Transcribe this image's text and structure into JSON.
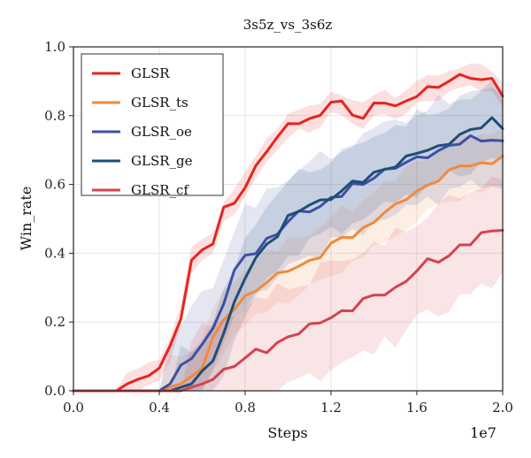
{
  "chart_data": {
    "type": "line",
    "title": "3s5z_vs_3s6z",
    "xlabel": "Steps",
    "ylabel": "Win_rate",
    "x_scale_label": "1e7",
    "xlim": [
      0.0,
      2.0
    ],
    "ylim": [
      0.0,
      1.0
    ],
    "x_ticks": [
      "0.0",
      "0.4",
      "0.8",
      "1.2",
      "1.6",
      "2.0"
    ],
    "y_ticks": [
      "0.0",
      "0.2",
      "0.4",
      "0.6",
      "0.8",
      "1.0"
    ],
    "grid": true,
    "legend_position": "top-left",
    "x": [
      0.0,
      0.1,
      0.2,
      0.25,
      0.3,
      0.35,
      0.4,
      0.45,
      0.5,
      0.55,
      0.6,
      0.65,
      0.7,
      0.75,
      0.8,
      0.85,
      0.9,
      0.95,
      1.0,
      1.05,
      1.1,
      1.15,
      1.2,
      1.25,
      1.3,
      1.35,
      1.4,
      1.45,
      1.5,
      1.55,
      1.6,
      1.65,
      1.7,
      1.75,
      1.8,
      1.85,
      1.9,
      1.95,
      2.0
    ],
    "series": [
      {
        "name": "GLSR",
        "color": "#e8231f",
        "values": [
          0.0,
          0.0,
          0.0,
          0.02,
          0.03,
          0.05,
          0.06,
          0.12,
          0.22,
          0.38,
          0.41,
          0.43,
          0.52,
          0.55,
          0.6,
          0.65,
          0.7,
          0.73,
          0.77,
          0.79,
          0.79,
          0.8,
          0.84,
          0.83,
          0.81,
          0.8,
          0.83,
          0.84,
          0.82,
          0.84,
          0.87,
          0.88,
          0.88,
          0.9,
          0.91,
          0.92,
          0.91,
          0.9,
          0.86
        ],
        "band": 0.04
      },
      {
        "name": "GLSR_ts",
        "color": "#f08a3c",
        "values": [
          0.0,
          0.0,
          0.0,
          0.0,
          0.0,
          0.0,
          0.0,
          0.01,
          0.02,
          0.04,
          0.08,
          0.15,
          0.2,
          0.24,
          0.27,
          0.3,
          0.32,
          0.33,
          0.35,
          0.36,
          0.38,
          0.4,
          0.42,
          0.44,
          0.45,
          0.47,
          0.5,
          0.52,
          0.53,
          0.56,
          0.58,
          0.6,
          0.62,
          0.63,
          0.65,
          0.66,
          0.66,
          0.67,
          0.68
        ],
        "band": 0.1
      },
      {
        "name": "GLSR_oe",
        "color": "#3d4fa6",
        "values": [
          0.0,
          0.0,
          0.0,
          0.0,
          0.0,
          0.0,
          0.0,
          0.02,
          0.06,
          0.1,
          0.14,
          0.18,
          0.26,
          0.34,
          0.39,
          0.41,
          0.44,
          0.46,
          0.49,
          0.51,
          0.53,
          0.54,
          0.56,
          0.57,
          0.59,
          0.6,
          0.63,
          0.64,
          0.65,
          0.66,
          0.67,
          0.69,
          0.7,
          0.71,
          0.72,
          0.73,
          0.73,
          0.74,
          0.72
        ],
        "band": 0.16
      },
      {
        "name": "GLSR_ge",
        "color": "#1e4e79",
        "values": [
          0.0,
          0.0,
          0.0,
          0.0,
          0.0,
          0.0,
          0.0,
          0.0,
          0.01,
          0.02,
          0.05,
          0.1,
          0.17,
          0.25,
          0.33,
          0.38,
          0.43,
          0.46,
          0.5,
          0.52,
          0.54,
          0.55,
          0.57,
          0.58,
          0.6,
          0.61,
          0.63,
          0.65,
          0.66,
          0.67,
          0.69,
          0.7,
          0.71,
          0.73,
          0.74,
          0.75,
          0.77,
          0.79,
          0.77
        ],
        "band": 0.13
      },
      {
        "name": "GLSR_cf",
        "color": "#d4434f",
        "values": [
          0.0,
          0.0,
          0.0,
          0.0,
          0.0,
          0.0,
          0.0,
          0.0,
          0.0,
          0.01,
          0.02,
          0.04,
          0.06,
          0.08,
          0.09,
          0.11,
          0.12,
          0.14,
          0.16,
          0.17,
          0.18,
          0.2,
          0.22,
          0.23,
          0.24,
          0.26,
          0.27,
          0.29,
          0.3,
          0.32,
          0.35,
          0.37,
          0.38,
          0.4,
          0.42,
          0.43,
          0.45,
          0.46,
          0.48
        ],
        "band": 0.18
      }
    ]
  }
}
